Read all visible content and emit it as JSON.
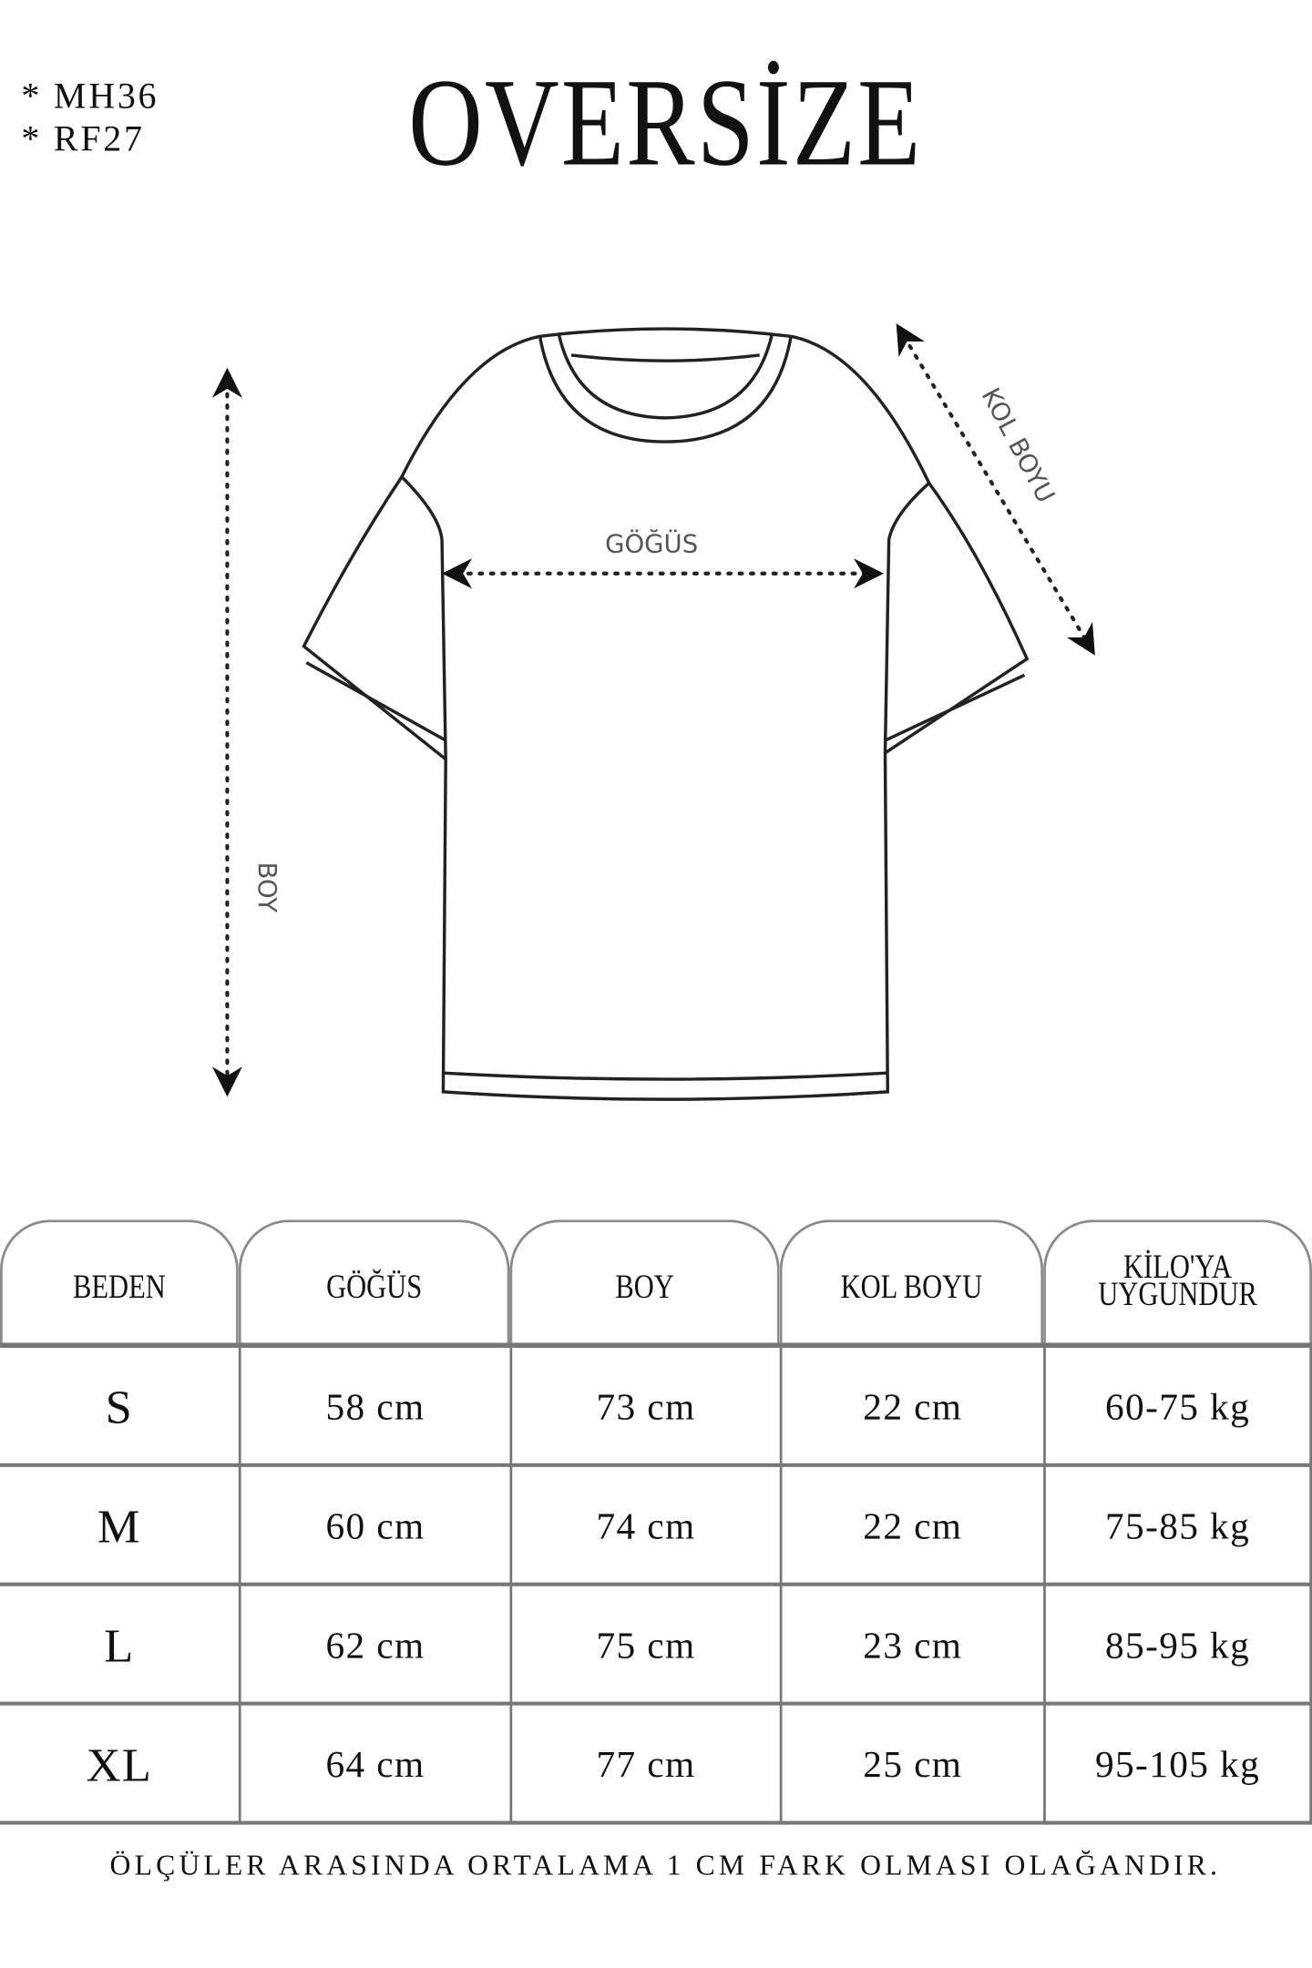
{
  "codes": [
    "* MH36",
    "* RF27"
  ],
  "title": "OVERSİZE",
  "diagram": {
    "labels": {
      "chest": "GÖĞÜS",
      "length": "BOY",
      "sleeve": "KOL BOYU"
    },
    "line_color": "#222222"
  },
  "table": {
    "headers": [
      "BEDEN",
      "GÖĞÜS",
      "BOY",
      "KOL BOYU",
      "KİLO'YA UYGUNDUR"
    ],
    "header_lines": [
      "KİLO'YA",
      "UYGUNDUR"
    ],
    "rows": [
      [
        "S",
        "58 cm",
        "73 cm",
        "22  cm",
        "60-75 kg"
      ],
      [
        "M",
        "60 cm",
        "74 cm",
        "22 cm",
        "75-85 kg"
      ],
      [
        "L",
        "62 cm",
        "75 cm",
        "23 cm",
        "85-95 kg"
      ],
      [
        "XL",
        "64 cm",
        "77 cm",
        "25 cm",
        "95-105 kg"
      ]
    ]
  },
  "footer": "ÖLÇÜLER ARASINDA ORTALAMA 1 CM FARK OLMASI OLAĞANDIR."
}
